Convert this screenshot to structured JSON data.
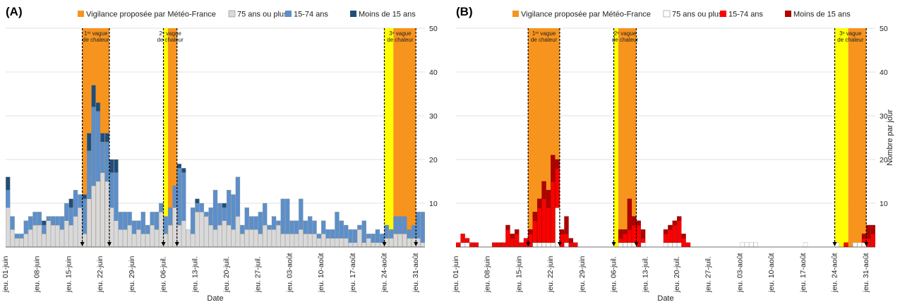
{
  "colors": {
    "vigilance_orange": "#f7941d",
    "vigilance_yellow": "#ffff00",
    "panelA": {
      "age75": "#d9d9d9",
      "age15_74": "#5b8fcb",
      "under15": "#1f4e79"
    },
    "panelB": {
      "age75": "#ffffff",
      "age15_74": "#ff0000",
      "under15": "#b00000"
    }
  },
  "chart_data": [
    {
      "type": "bar",
      "panel": "(A)",
      "stacked": true,
      "xlabel": "Date",
      "ylabel": "",
      "ylim": [
        0,
        50
      ],
      "yticks": [
        10,
        20,
        30,
        40,
        50
      ],
      "y_axis_position": "right",
      "grid": true,
      "legend": {
        "position": "top",
        "entries": [
          "Vigilance proposée par Météo-France",
          "75 ans ou plus",
          "15-74 ans",
          "Moins de 15 ans"
        ]
      },
      "x_start": "jeu. 01-juin",
      "x_tick_labels": [
        "jeu. 01-juin",
        "jeu. 08-juin",
        "jeu. 15-juin",
        "jeu. 22-juin",
        "jeu. 29-juin",
        "jeu. 06-juil.",
        "jeu. 13-juil.",
        "jeu. 20-juil.",
        "jeu. 27-juil.",
        "jeu. 03-août",
        "jeu. 10-août",
        "jeu. 17-août",
        "jeu. 24-août",
        "jeu. 31-août"
      ],
      "heat_waves": [
        {
          "label_lines": [
            "1ʳᵉ vague",
            "de chaleur"
          ],
          "start_day": 17,
          "end_day": 23,
          "bands": [
            {
              "color": "orange",
              "from": 17,
              "to": 23
            }
          ]
        },
        {
          "label_lines": [
            "2ᵉ vague",
            "de chaleur"
          ],
          "start_day": 35,
          "end_day": 38,
          "bands": [
            {
              "color": "yellow",
              "from": 35,
              "to": 36
            },
            {
              "color": "orange",
              "from": 36,
              "to": 38
            }
          ]
        },
        {
          "label_lines": [
            "3ᵉ vague",
            "de chaleur"
          ],
          "start_day": 84,
          "end_day": 91,
          "bands": [
            {
              "color": "yellow",
              "from": 84,
              "to": 86
            },
            {
              "color": "orange",
              "from": 86,
              "to": 91
            }
          ]
        }
      ],
      "series": [
        {
          "name": "75 ans ou plus",
          "values": [
            9,
            4,
            2,
            2,
            3,
            4,
            5,
            5,
            3,
            6,
            5,
            5,
            4,
            6,
            5,
            7,
            9,
            3,
            11,
            14,
            15,
            17,
            15,
            9,
            6,
            4,
            4,
            5,
            3,
            4,
            3,
            3,
            5,
            4,
            8,
            3,
            5,
            9,
            5,
            6,
            4,
            3,
            8,
            8,
            7,
            5,
            4,
            5,
            6,
            5,
            4,
            7,
            3,
            4,
            4,
            4,
            3,
            5,
            4,
            4,
            5,
            3,
            3,
            3,
            3,
            4,
            3,
            3,
            3,
            2,
            3,
            2,
            2,
            2,
            2,
            2,
            1,
            1,
            4,
            1,
            2,
            1,
            1,
            1,
            2,
            2,
            3,
            3,
            3,
            2,
            2,
            2,
            1
          ]
        },
        {
          "name": "15-74 ans",
          "values": [
            4,
            3,
            1,
            1,
            3,
            3,
            3,
            3,
            2,
            1,
            2,
            2,
            3,
            4,
            4,
            6,
            3,
            8,
            11,
            18,
            16,
            7,
            9,
            8,
            11,
            4,
            4,
            3,
            3,
            2,
            5,
            2,
            3,
            4,
            2,
            4,
            4,
            5,
            13,
            11,
            0,
            6,
            2,
            2,
            1,
            4,
            9,
            5,
            3,
            8,
            8,
            9,
            2,
            5,
            3,
            3,
            5,
            5,
            1,
            3,
            1,
            8,
            8,
            3,
            3,
            7,
            3,
            4,
            3,
            1,
            3,
            2,
            2,
            6,
            4,
            3,
            3,
            3,
            1,
            5,
            1,
            2,
            3,
            2,
            3,
            2,
            4,
            4,
            4,
            2,
            3,
            6,
            7
          ]
        },
        {
          "name": "Moins de 15 ans",
          "values": [
            3,
            0,
            0,
            0,
            0,
            0,
            0,
            0,
            1,
            0,
            0,
            0,
            0,
            0,
            2,
            0,
            0,
            1,
            4,
            5,
            2,
            2,
            2,
            3,
            3,
            0,
            0,
            0,
            0,
            0,
            0,
            0,
            0,
            0,
            0,
            0,
            0,
            0,
            1,
            1,
            0,
            0,
            1,
            0,
            0,
            0,
            0,
            0,
            1,
            0,
            0,
            0,
            0,
            0,
            0,
            0,
            0,
            0,
            0,
            0,
            0,
            0,
            0,
            0,
            0,
            0,
            0,
            0,
            0,
            0,
            0,
            0,
            0,
            0,
            0,
            0,
            0,
            0,
            0,
            0,
            0,
            0,
            0,
            0,
            0,
            0,
            0,
            0,
            0,
            0,
            0,
            0,
            0
          ]
        }
      ]
    },
    {
      "type": "bar",
      "panel": "(B)",
      "stacked": true,
      "xlabel": "Date",
      "ylabel": "Nombre par jour",
      "ylim": [
        0,
        50
      ],
      "yticks": [
        10,
        20,
        30,
        40,
        50
      ],
      "y_axis_position": "right",
      "grid": true,
      "legend": {
        "position": "top",
        "entries": [
          "Vigilance proposée par Météo-France",
          "75 ans ou plus",
          "15-74 ans",
          "Moins de 15 ans"
        ]
      },
      "x_start": "jeu. 01-juin",
      "x_tick_labels": [
        "jeu. 01-juin",
        "jeu. 08-juin",
        "jeu. 15-juin",
        "jeu. 22-juin",
        "jeu. 29-juin",
        "jeu. 06-juil.",
        "jeu. 13-juil.",
        "jeu. 20-juil.",
        "jeu. 27-juil.",
        "jeu. 03-août",
        "jeu. 10-août",
        "jeu. 17-août",
        "jeu. 24-août",
        "jeu. 31-août"
      ],
      "heat_waves": [
        {
          "label_lines": [
            "1ʳᵉ vague",
            "de chaleur"
          ],
          "start_day": 16,
          "end_day": 23,
          "bands": [
            {
              "color": "orange",
              "from": 16,
              "to": 23
            }
          ]
        },
        {
          "label_lines": [
            "2ᵉ vague",
            "de chaleur"
          ],
          "start_day": 35,
          "end_day": 40,
          "bands": [
            {
              "color": "yellow",
              "from": 35,
              "to": 36
            },
            {
              "color": "orange",
              "from": 36,
              "to": 40
            }
          ]
        },
        {
          "label_lines": [
            "3ᵉ vague",
            "de chaleur"
          ],
          "start_day": 84,
          "end_day": 91,
          "bands": [
            {
              "color": "yellow",
              "from": 84,
              "to": 87
            },
            {
              "color": "orange",
              "from": 87,
              "to": 91
            }
          ]
        }
      ],
      "series": [
        {
          "name": "75 ans ou plus",
          "values": [
            0,
            1,
            1,
            0,
            0,
            0,
            0,
            0,
            0,
            0,
            0,
            0,
            0,
            0,
            0,
            0,
            0,
            1,
            1,
            1,
            1,
            1,
            9,
            0,
            1,
            0,
            0,
            0,
            0,
            0,
            0,
            0,
            0,
            0,
            0,
            0,
            1,
            1,
            1,
            1,
            0,
            1,
            0,
            0,
            0,
            0,
            1,
            1,
            1,
            1,
            0,
            0,
            0,
            0,
            0,
            0,
            0,
            0,
            0,
            0,
            0,
            0,
            0,
            1,
            1,
            1,
            1,
            0,
            0,
            0,
            0,
            0,
            0,
            0,
            0,
            0,
            0,
            1,
            0,
            0,
            0,
            0,
            0,
            0,
            1,
            0,
            0,
            0,
            1,
            1,
            1,
            0,
            0
          ]
        },
        {
          "name": "15-74 ans",
          "values": [
            1,
            2,
            1,
            1,
            1,
            0,
            0,
            0,
            1,
            1,
            1,
            4,
            2,
            3,
            1,
            2,
            3,
            5,
            8,
            10,
            8,
            14,
            9,
            3,
            2,
            1,
            1,
            0,
            0,
            0,
            0,
            0,
            0,
            0,
            0,
            0,
            1,
            2,
            3,
            4,
            5,
            1,
            0,
            0,
            0,
            0,
            2,
            3,
            4,
            5,
            2,
            1,
            0,
            0,
            0,
            0,
            0,
            0,
            0,
            0,
            0,
            0,
            0,
            0,
            0,
            0,
            0,
            0,
            0,
            0,
            0,
            0,
            0,
            0,
            0,
            0,
            0,
            0,
            0,
            0,
            0,
            0,
            0,
            0,
            0,
            0,
            1,
            0,
            0,
            0,
            1,
            2,
            3
          ]
        },
        {
          "name": "Moins de 15 ans",
          "values": [
            0,
            0,
            0,
            0,
            0,
            0,
            0,
            0,
            0,
            0,
            0,
            1,
            1,
            1,
            0,
            0,
            1,
            2,
            2,
            4,
            4,
            6,
            2,
            1,
            4,
            1,
            0,
            0,
            0,
            0,
            0,
            0,
            0,
            0,
            0,
            0,
            2,
            1,
            7,
            2,
            1,
            2,
            0,
            0,
            0,
            0,
            1,
            1,
            1,
            1,
            1,
            0,
            0,
            0,
            0,
            0,
            0,
            0,
            0,
            0,
            0,
            0,
            0,
            0,
            0,
            0,
            0,
            0,
            0,
            0,
            0,
            0,
            0,
            0,
            0,
            0,
            0,
            0,
            0,
            0,
            0,
            0,
            0,
            0,
            0,
            0,
            0,
            0,
            0,
            0,
            1,
            3,
            2
          ]
        }
      ]
    }
  ]
}
